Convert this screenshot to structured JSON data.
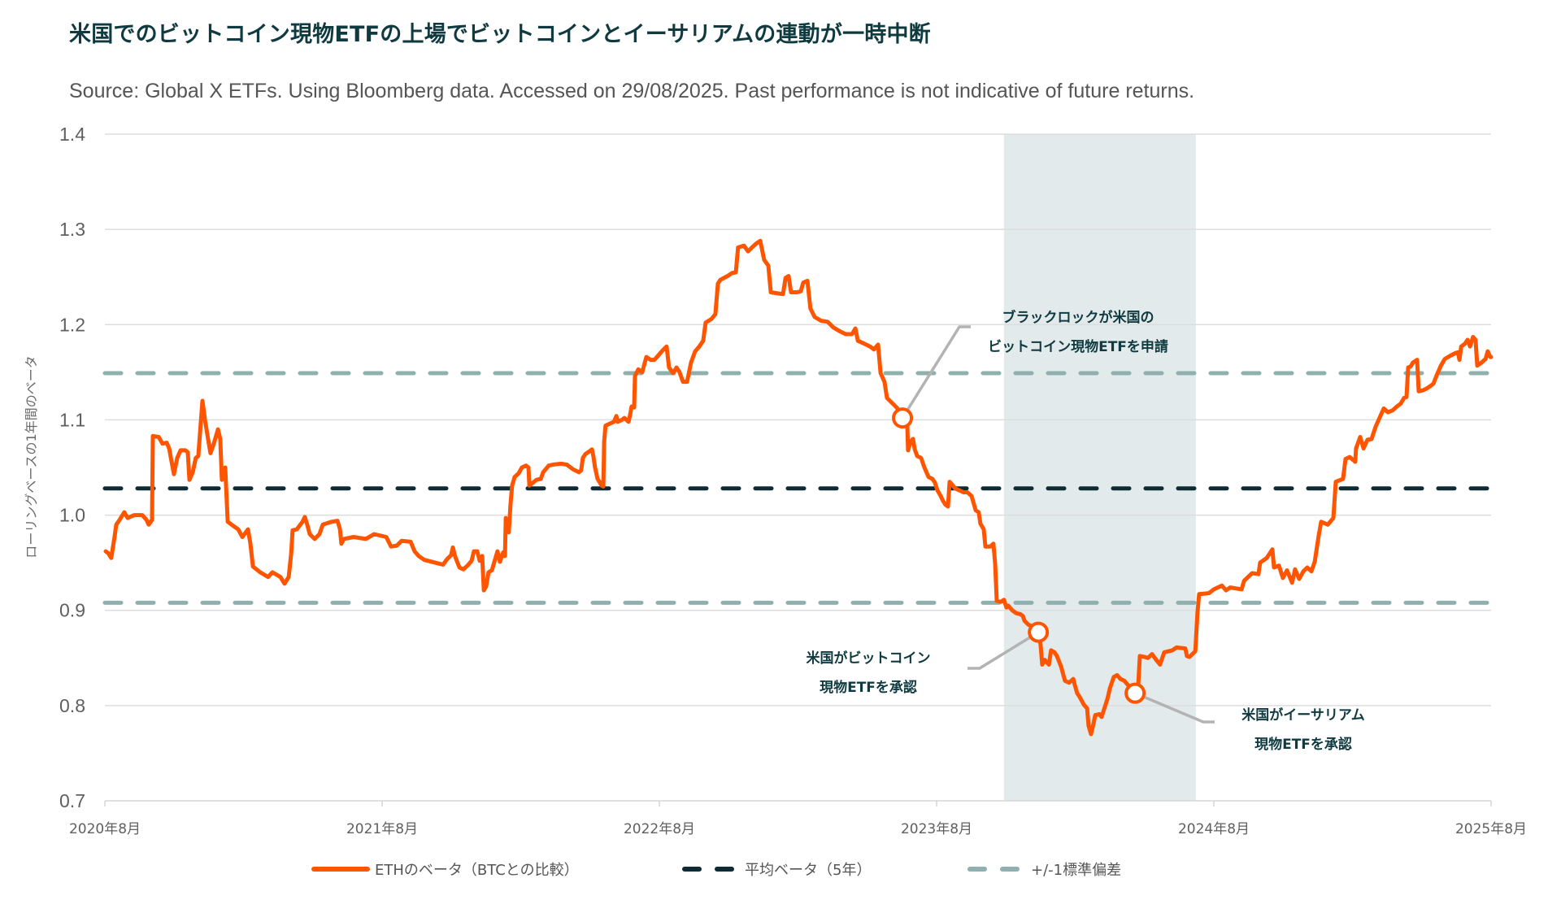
{
  "title": "米国でのビットコイン現物ETFの上場でビットコインとイーサリアムの連動が一時中断",
  "source": "Source: Global X ETFs. Using Bloomberg data. Accessed on 29/08/2025. Past performance is not indicative of future returns.",
  "colors": {
    "eth_beta": "#ff5500",
    "mean": "#0e2a33",
    "std": "#8fb0ae",
    "band": "#e2eaeb",
    "grid": "#dddddd",
    "leader": "#b3b3b3",
    "annotation_text": "#0f3a40"
  },
  "chart_data": {
    "type": "line",
    "title": "米国でのビットコイン現物ETFの上場でビットコインとイーサリアムの連動が一時中断",
    "xlabel": "",
    "ylabel": "ローリングベースの1年間のベータ",
    "ylim": [
      0.7,
      1.4
    ],
    "yticks": [
      0.7,
      0.8,
      0.9,
      1.0,
      1.1,
      1.2,
      1.3,
      1.4
    ],
    "ytick_labels": [
      "0.7",
      "0.8",
      "0.9",
      "1.0",
      "1.1",
      "1.2",
      "1.3",
      "1.4"
    ],
    "x_unit": "years since 2020年8月",
    "xlim": [
      0,
      5
    ],
    "xticks": [
      0,
      1,
      2,
      3,
      4,
      5
    ],
    "xtick_labels": [
      "2020年8月",
      "2021年8月",
      "2022年8月",
      "2023年8月",
      "2024年8月",
      "2025年8月"
    ],
    "grid": true,
    "legend_position": "bottom",
    "legend": [
      {
        "key": "eth",
        "label": "ETHのベータ（BTCとの比較）",
        "style": "solid"
      },
      {
        "key": "mean",
        "label": "平均ベータ（5年）",
        "style": "dashed"
      },
      {
        "key": "std",
        "label": "+/-1標準偏差",
        "style": "dashed"
      }
    ],
    "reference_lines": {
      "mean": 1.028,
      "std_upper": 1.149,
      "std_lower": 0.908
    },
    "shaded_period": [
      3.243,
      3.935
    ],
    "series": [
      {
        "name": "ETHのベータ（BTCとの比較）",
        "x": [
          0.003,
          0.012,
          0.023,
          0.035,
          0.041,
          0.053,
          0.07,
          0.082,
          0.106,
          0.135,
          0.15,
          0.158,
          0.17,
          0.173,
          0.194,
          0.208,
          0.223,
          0.232,
          0.238,
          0.249,
          0.261,
          0.273,
          0.29,
          0.299,
          0.305,
          0.317,
          0.328,
          0.337,
          0.352,
          0.361,
          0.372,
          0.381,
          0.393,
          0.408,
          0.416,
          0.422,
          0.434,
          0.443,
          0.457,
          0.481,
          0.496,
          0.516,
          0.525,
          0.534,
          0.56,
          0.589,
          0.604,
          0.633,
          0.648,
          0.663,
          0.672,
          0.677,
          0.692,
          0.713,
          0.721,
          0.73,
          0.739,
          0.757,
          0.774,
          0.786,
          0.818,
          0.839,
          0.848,
          0.853,
          0.862,
          0.897,
          0.941,
          0.971,
          1.015,
          1.032,
          1.053,
          1.07,
          1.103,
          1.117,
          1.132,
          1.152,
          1.191,
          1.22,
          1.235,
          1.249,
          1.255,
          1.264,
          1.279,
          1.293,
          1.308,
          1.323,
          1.331,
          1.343,
          1.352,
          1.361,
          1.367,
          1.375,
          1.384,
          1.396,
          1.405,
          1.416,
          1.425,
          1.437,
          1.443,
          1.446,
          1.452,
          1.457,
          1.463,
          1.469,
          1.478,
          1.493,
          1.504,
          1.519,
          1.528,
          1.531,
          1.557,
          1.572,
          1.581,
          1.601,
          1.616,
          1.645,
          1.666,
          1.689,
          1.71,
          1.718,
          1.724,
          1.733,
          1.748,
          1.757,
          1.762,
          1.768,
          1.777,
          1.792,
          1.798,
          1.801,
          1.806,
          1.821,
          1.836,
          1.845,
          1.85,
          1.865,
          1.874,
          1.889,
          1.894,
          1.9,
          1.909,
          1.912,
          1.924,
          1.938,
          1.953,
          1.968,
          1.982,
          1.997,
          2.012,
          2.026,
          2.035,
          2.05,
          2.062,
          2.073,
          2.085,
          2.1,
          2.114,
          2.129,
          2.144,
          2.158,
          2.167,
          2.188,
          2.202,
          2.211,
          2.22,
          2.246,
          2.261,
          2.276,
          2.284,
          2.305,
          2.32,
          2.334,
          2.349,
          2.364,
          2.378,
          2.393,
          2.402,
          2.422,
          2.446,
          2.455,
          2.466,
          2.475,
          2.496,
          2.51,
          2.519,
          2.534,
          2.545,
          2.56,
          2.584,
          2.607,
          2.628,
          2.651,
          2.672,
          2.695,
          2.707,
          2.716,
          2.739,
          2.76,
          2.774,
          2.789,
          2.798,
          2.812,
          2.821,
          2.842,
          2.859,
          2.877,
          2.894,
          2.897,
          2.906,
          2.915,
          2.921,
          2.93,
          2.944,
          2.956,
          2.971,
          2.985,
          2.994,
          3.003,
          3.015,
          3.023,
          3.032,
          3.041,
          3.047,
          3.056,
          3.067,
          3.082,
          3.097,
          3.111,
          3.126,
          3.141,
          3.152,
          3.158,
          3.17,
          3.176,
          3.194,
          3.205,
          3.211,
          3.217,
          3.232,
          3.243,
          3.252,
          3.258,
          3.273,
          3.287,
          3.302,
          3.311,
          3.317,
          3.331,
          3.346,
          3.367,
          3.375,
          3.381,
          3.39,
          3.405,
          3.413,
          3.425,
          3.434,
          3.449,
          3.463,
          3.478,
          3.493,
          3.499,
          3.507,
          3.516,
          3.531,
          3.543,
          3.548,
          3.557,
          3.566,
          3.572,
          3.587,
          3.595,
          3.604,
          3.616,
          3.625,
          3.639,
          3.651,
          3.663,
          3.677,
          3.692,
          3.716,
          3.727,
          3.733,
          3.751,
          3.762,
          3.777,
          3.792,
          3.806,
          3.821,
          3.85,
          3.865,
          3.897,
          3.903,
          3.912,
          3.933,
          3.941,
          3.947,
          3.982,
          4.0,
          4.029,
          4.044,
          4.059,
          4.1,
          4.109,
          4.138,
          4.161,
          4.167,
          4.191,
          4.211,
          4.217,
          4.235,
          4.249,
          4.264,
          4.282,
          4.293,
          4.308,
          4.323,
          4.337,
          4.352,
          4.364,
          4.378,
          4.387,
          4.411,
          4.431,
          4.44,
          4.466,
          4.475,
          4.49,
          4.51,
          4.513,
          4.528,
          4.54,
          4.554,
          4.569,
          4.584,
          4.613,
          4.628,
          4.645,
          4.66,
          4.674,
          4.686,
          4.695,
          4.701,
          4.71,
          4.718,
          4.733,
          4.739,
          4.754,
          4.768,
          4.783,
          4.792,
          4.804,
          4.819,
          4.833,
          4.851,
          4.871,
          4.88,
          4.886,
          4.892,
          4.906,
          4.915,
          4.924,
          4.935,
          4.944,
          4.95,
          4.965,
          4.98,
          4.988,
          4.997,
          5.0
        ],
        "y": [
          0.962,
          0.96,
          0.955,
          0.977,
          0.99,
          0.995,
          1.003,
          0.997,
          1.0,
          1.0,
          0.995,
          0.99,
          0.995,
          1.083,
          1.082,
          1.075,
          1.076,
          1.07,
          1.06,
          1.043,
          1.06,
          1.068,
          1.068,
          1.066,
          1.037,
          1.045,
          1.06,
          1.062,
          1.12,
          1.1,
          1.08,
          1.065,
          1.075,
          1.09,
          1.08,
          1.037,
          1.05,
          0.993,
          0.99,
          0.985,
          0.977,
          0.985,
          0.97,
          0.946,
          0.94,
          0.935,
          0.94,
          0.935,
          0.928,
          0.935,
          0.96,
          0.984,
          0.985,
          0.993,
          0.998,
          0.99,
          0.98,
          0.975,
          0.98,
          0.99,
          0.993,
          0.994,
          0.985,
          0.97,
          0.975,
          0.977,
          0.975,
          0.98,
          0.977,
          0.967,
          0.968,
          0.973,
          0.972,
          0.962,
          0.957,
          0.953,
          0.95,
          0.948,
          0.954,
          0.958,
          0.966,
          0.956,
          0.945,
          0.943,
          0.947,
          0.952,
          0.962,
          0.962,
          0.952,
          0.957,
          0.921,
          0.925,
          0.94,
          0.942,
          0.951,
          0.962,
          0.951,
          0.961,
          0.957,
          0.997,
          0.99,
          0.982,
          1.011,
          1.031,
          1.04,
          1.044,
          1.05,
          1.052,
          1.05,
          1.031,
          1.037,
          1.038,
          1.045,
          1.052,
          1.053,
          1.054,
          1.053,
          1.048,
          1.045,
          1.047,
          1.06,
          1.064,
          1.067,
          1.069,
          1.062,
          1.05,
          1.038,
          1.031,
          1.03,
          1.077,
          1.094,
          1.096,
          1.098,
          1.104,
          1.098,
          1.1,
          1.102,
          1.098,
          1.105,
          1.114,
          1.113,
          1.146,
          1.153,
          1.15,
          1.166,
          1.163,
          1.163,
          1.168,
          1.173,
          1.177,
          1.155,
          1.149,
          1.155,
          1.15,
          1.14,
          1.14,
          1.16,
          1.172,
          1.177,
          1.183,
          1.202,
          1.206,
          1.211,
          1.243,
          1.247,
          1.251,
          1.254,
          1.255,
          1.281,
          1.283,
          1.277,
          1.281,
          1.285,
          1.288,
          1.268,
          1.262,
          1.234,
          1.233,
          1.232,
          1.249,
          1.251,
          1.234,
          1.234,
          1.235,
          1.244,
          1.246,
          1.217,
          1.208,
          1.204,
          1.203,
          1.197,
          1.193,
          1.19,
          1.19,
          1.196,
          1.183,
          1.18,
          1.177,
          1.174,
          1.179,
          1.149,
          1.14,
          1.123,
          1.117,
          1.112,
          1.102,
          1.096,
          1.068,
          1.077,
          1.08,
          1.069,
          1.062,
          1.06,
          1.05,
          1.04,
          1.038,
          1.034,
          1.026,
          1.02,
          1.015,
          1.011,
          1.009,
          1.035,
          1.032,
          1.028,
          1.026,
          1.024,
          1.024,
          1.02,
          1.005,
          1.003,
          0.991,
          0.985,
          0.967,
          0.967,
          0.97,
          0.949,
          0.91,
          0.909,
          0.911,
          0.903,
          0.905,
          0.9,
          0.897,
          0.896,
          0.894,
          0.889,
          0.885,
          0.883,
          0.877,
          0.864,
          0.843,
          0.848,
          0.843,
          0.858,
          0.856,
          0.852,
          0.841,
          0.826,
          0.824,
          0.828,
          0.821,
          0.813,
          0.809,
          0.801,
          0.797,
          0.779,
          0.77,
          0.781,
          0.79,
          0.791,
          0.788,
          0.796,
          0.807,
          0.818,
          0.83,
          0.832,
          0.828,
          0.826,
          0.821,
          0.813,
          0.82,
          0.852,
          0.851,
          0.85,
          0.854,
          0.848,
          0.843,
          0.856,
          0.858,
          0.861,
          0.86,
          0.852,
          0.851,
          0.857,
          0.898,
          0.917,
          0.918,
          0.922,
          0.926,
          0.921,
          0.924,
          0.922,
          0.931,
          0.939,
          0.938,
          0.95,
          0.955,
          0.964,
          0.945,
          0.947,
          0.934,
          0.942,
          0.929,
          0.943,
          0.933,
          0.941,
          0.945,
          0.941,
          0.951,
          0.978,
          0.993,
          0.99,
          0.997,
          1.035,
          1.038,
          1.059,
          1.061,
          1.056,
          1.07,
          1.082,
          1.07,
          1.079,
          1.08,
          1.093,
          1.112,
          1.108,
          1.11,
          1.114,
          1.117,
          1.123,
          1.124,
          1.155,
          1.156,
          1.16,
          1.163,
          1.13,
          1.131,
          1.133,
          1.136,
          1.138,
          1.147,
          1.157,
          1.164,
          1.167,
          1.17,
          1.171,
          1.163,
          1.177,
          1.18,
          1.184,
          1.177,
          1.187,
          1.184,
          1.157,
          1.16,
          1.164,
          1.172,
          1.166,
          1.166
        ]
      }
    ],
    "annotations": [
      {
        "label_lines": [
          "ブラックロックが米国の",
          "ビットコイン現物ETFを申請"
        ],
        "x": 2.877,
        "y": 1.102
      },
      {
        "label_lines": [
          "米国がビットコイン",
          "現物ETFを承認"
        ],
        "x": 3.367,
        "y": 0.877
      },
      {
        "label_lines": [
          "米国がイーサリアム",
          "現物ETFを承認"
        ],
        "x": 3.716,
        "y": 0.813
      }
    ]
  }
}
